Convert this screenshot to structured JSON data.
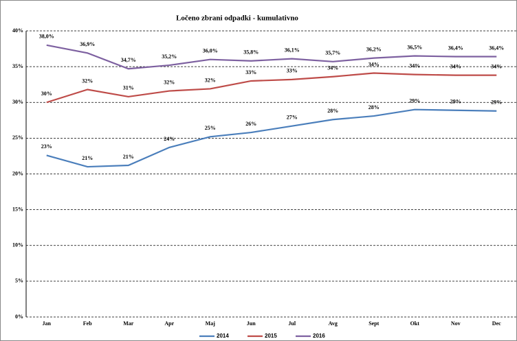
{
  "chart_data": {
    "type": "line",
    "title": "Ločeno zbrani odpadki - kumulativno",
    "categories": [
      "Jan",
      "Feb",
      "Mar",
      "Apr",
      "Maj",
      "Jun",
      "Jul",
      "Avg",
      "Sept",
      "Okt",
      "Nov",
      "Dec"
    ],
    "series": [
      {
        "name": "2014",
        "color": "#4a7ebb",
        "values": [
          22.6,
          21.0,
          21.2,
          23.7,
          25.2,
          25.8,
          26.7,
          27.6,
          28.1,
          29.0,
          28.9,
          28.8
        ],
        "value_labels": [
          "23%",
          "21%",
          "21%",
          "24%",
          "25%",
          "26%",
          "27%",
          "28%",
          "28%",
          "29%",
          "29%",
          "29%"
        ]
      },
      {
        "name": "2015",
        "color": "#be4b48",
        "values": [
          30.0,
          31.8,
          30.8,
          31.6,
          31.9,
          33.0,
          33.2,
          33.6,
          34.1,
          33.9,
          33.8,
          33.8
        ],
        "value_labels": [
          "30%",
          "32%",
          "31%",
          "32%",
          "32%",
          "33%",
          "33%",
          "34%",
          "34%",
          "34%",
          "34%",
          "34%"
        ]
      },
      {
        "name": "2016",
        "color": "#7d60a0",
        "values": [
          38.0,
          36.9,
          34.7,
          35.2,
          36.0,
          35.8,
          36.1,
          35.7,
          36.2,
          36.5,
          36.4,
          36.4
        ],
        "value_labels": [
          "38,0%",
          "36,9%",
          "34,7%",
          "35,2%",
          "36,0%",
          "35,8%",
          "36,1%",
          "35,7%",
          "36,2%",
          "36,5%",
          "36,4%",
          "36,4%"
        ]
      }
    ],
    "ylim": [
      0,
      40
    ],
    "yticks": [
      {
        "value": 0,
        "label": "0%"
      },
      {
        "value": 5,
        "label": "5%"
      },
      {
        "value": 10,
        "label": "10%"
      },
      {
        "value": 15,
        "label": "15%"
      },
      {
        "value": 20,
        "label": "20%"
      },
      {
        "value": 25,
        "label": "25%"
      },
      {
        "value": 30,
        "label": "30%"
      },
      {
        "value": 35,
        "label": "35%"
      },
      {
        "value": 40,
        "label": "40%"
      }
    ],
    "grid": true,
    "legend": "bottom"
  }
}
